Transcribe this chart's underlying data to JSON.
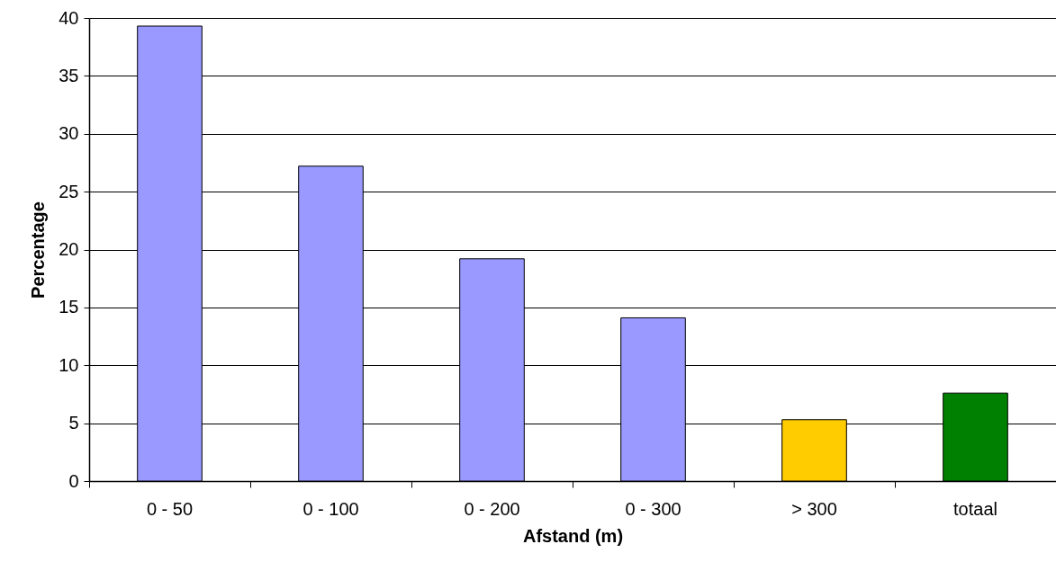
{
  "chart_data": {
    "type": "bar",
    "xlabel": "Afstand (m)",
    "ylabel": "Percentage",
    "categories": [
      "0 -   50",
      "0 - 100",
      "0 - 200",
      "0 - 300",
      "> 300",
      "totaal"
    ],
    "values": [
      39.3,
      27.2,
      19.2,
      14.1,
      5.3,
      7.6
    ],
    "colors": [
      "#9999ff",
      "#9999ff",
      "#9999ff",
      "#9999ff",
      "#ffcc00",
      "#008000"
    ],
    "ylim": [
      0,
      40
    ],
    "yticks": [
      0,
      5,
      10,
      15,
      20,
      25,
      30,
      35,
      40
    ],
    "grid": "y"
  }
}
